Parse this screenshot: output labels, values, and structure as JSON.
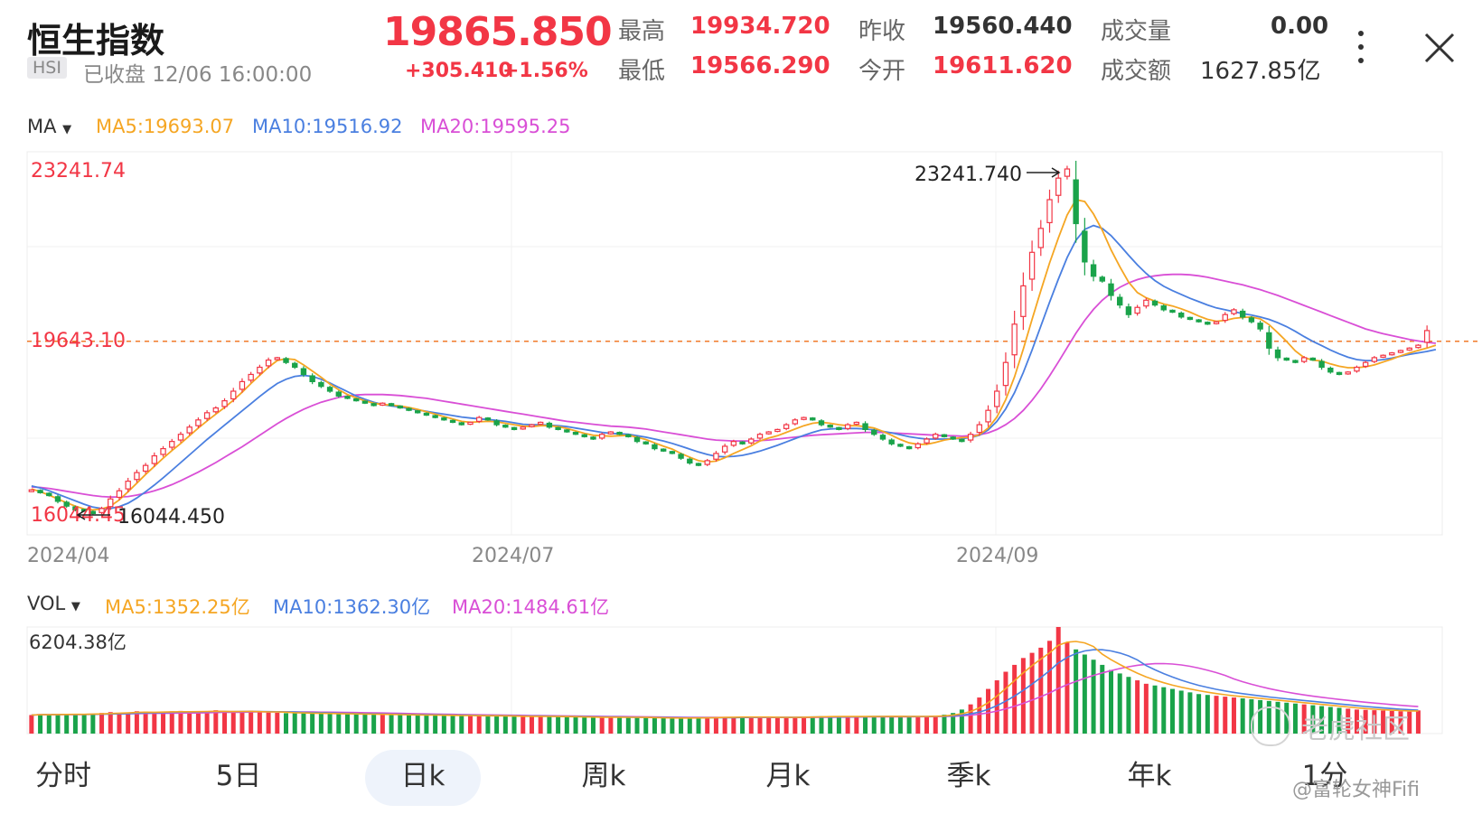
{
  "header": {
    "title": "恒生指数",
    "ticker": "HSI",
    "status": "已收盘 12/06 16:00:00",
    "price": "19865.850",
    "change": "+305.410",
    "change_pct": "+1.56%",
    "stats": {
      "high_label": "最高",
      "high": "19934.720",
      "low_label": "最低",
      "low": "19566.290",
      "prev_close_label": "昨收",
      "prev_close": "19560.440",
      "open_label": "今开",
      "open": "19611.620",
      "volume_label": "成交量",
      "volume": "0.00",
      "turnover_label": "成交额",
      "turnover": "1627.85亿"
    }
  },
  "ma_legend": {
    "label": "MA",
    "ma5": "MA5:19693.07",
    "ma10": "MA10:19516.92",
    "ma20": "MA20:19595.25"
  },
  "vol_legend": {
    "label": "VOL",
    "ma5": "MA5:1352.25亿",
    "ma10": "MA10:1362.30亿",
    "ma20": "MA20:1484.61亿"
  },
  "chart_data": [
    {
      "type": "candlestick",
      "title": "",
      "x_ticks": [
        "2024/04",
        "2024/07",
        "2024/09"
      ],
      "ylim": [
        15600,
        23600
      ],
      "max_label": "23241.74",
      "min_label": "16044.45",
      "high_marker": "23241.740",
      "low_marker": "16044.450",
      "current_line_label": "19643.10",
      "current_line_value": 19643.1,
      "close_series": [
        16540,
        16480,
        16420,
        16300,
        16200,
        16120,
        16100,
        16044,
        16150,
        16350,
        16520,
        16720,
        16900,
        17050,
        17250,
        17400,
        17550,
        17700,
        17850,
        18000,
        18150,
        18250,
        18400,
        18600,
        18800,
        18950,
        19100,
        19250,
        19300,
        19200,
        19100,
        18950,
        18800,
        18700,
        18600,
        18500,
        18450,
        18400,
        18350,
        18300,
        18350,
        18300,
        18250,
        18200,
        18150,
        18100,
        18050,
        18000,
        17950,
        17900,
        17950,
        18050,
        18000,
        17900,
        17850,
        17800,
        17850,
        17900,
        17950,
        17850,
        17800,
        17750,
        17700,
        17650,
        17600,
        17700,
        17750,
        17700,
        17650,
        17550,
        17500,
        17400,
        17350,
        17300,
        17200,
        17100,
        17050,
        17150,
        17300,
        17450,
        17550,
        17500,
        17600,
        17700,
        17750,
        17800,
        17900,
        18000,
        18050,
        18000,
        17900,
        17850,
        17800,
        17900,
        17950,
        17800,
        17700,
        17600,
        17500,
        17450,
        17400,
        17500,
        17600,
        17700,
        17650,
        17600,
        17550,
        17700,
        17900,
        18200,
        18600,
        19200,
        20000,
        20800,
        21500,
        22000,
        22600,
        23050,
        23241,
        22100,
        21300,
        21000,
        20900,
        20600,
        20400,
        20200,
        20350,
        20500,
        20400,
        20300,
        20250,
        20150,
        20100,
        20050,
        20000,
        20050,
        20200,
        20300,
        20150,
        20050,
        19900,
        19500,
        19300,
        19250,
        19200,
        19300,
        19250,
        19100,
        19000,
        18950,
        19000,
        19100,
        19200,
        19300,
        19350,
        19400,
        19450,
        19500,
        19560,
        19866
      ],
      "ma5_series": [
        16560,
        16500,
        16430,
        16350,
        16270,
        16200,
        16140,
        16120,
        16140,
        16200,
        16330,
        16500,
        16680,
        16860,
        17030,
        17200,
        17360,
        17510,
        17670,
        17830,
        17980,
        18120,
        18260,
        18410,
        18580,
        18760,
        18930,
        19100,
        19240,
        19280,
        19260,
        19150,
        19020,
        18890,
        18750,
        18630,
        18530,
        18460,
        18400,
        18350,
        18320,
        18310,
        18290,
        18260,
        18220,
        18170,
        18120,
        18070,
        18020,
        17970,
        17950,
        17960,
        17970,
        17960,
        17930,
        17900,
        17870,
        17860,
        17880,
        17880,
        17860,
        17820,
        17770,
        17720,
        17680,
        17670,
        17660,
        17670,
        17680,
        17640,
        17590,
        17520,
        17450,
        17390,
        17300,
        17220,
        17150,
        17120,
        17140,
        17210,
        17300,
        17380,
        17460,
        17560,
        17620,
        17670,
        17740,
        17810,
        17880,
        17930,
        17950,
        17930,
        17900,
        17880,
        17880,
        17860,
        17830,
        17760,
        17680,
        17590,
        17520,
        17490,
        17490,
        17530,
        17580,
        17610,
        17630,
        17640,
        17690,
        17830,
        18060,
        18420,
        18900,
        19480,
        20100,
        20700,
        21280,
        21800,
        22280,
        22600,
        22560,
        22300,
        21960,
        21550,
        21200,
        20880,
        20660,
        20550,
        20480,
        20420,
        20380,
        20320,
        20250,
        20170,
        20100,
        20060,
        20080,
        20120,
        20140,
        20150,
        20110,
        19990,
        19820,
        19640,
        19440,
        19300,
        19250,
        19230,
        19170,
        19120,
        19090,
        19090,
        19110,
        19150,
        19210,
        19270,
        19340,
        19400,
        19450,
        19500,
        19560
      ],
      "ma10_series": [
        16620,
        16580,
        16520,
        16450,
        16380,
        16310,
        16240,
        16180,
        16150,
        16150,
        16190,
        16260,
        16370,
        16500,
        16640,
        16790,
        16950,
        17110,
        17270,
        17430,
        17590,
        17740,
        17890,
        18040,
        18190,
        18340,
        18490,
        18630,
        18760,
        18850,
        18910,
        18930,
        18910,
        18850,
        18770,
        18680,
        18590,
        18500,
        18430,
        18370,
        18320,
        18290,
        18270,
        18240,
        18210,
        18180,
        18150,
        18120,
        18090,
        18060,
        18040,
        18020,
        18010,
        17990,
        17970,
        17940,
        17910,
        17900,
        17900,
        17890,
        17880,
        17860,
        17830,
        17800,
        17770,
        17740,
        17720,
        17710,
        17700,
        17670,
        17640,
        17600,
        17560,
        17510,
        17450,
        17390,
        17330,
        17280,
        17240,
        17230,
        17240,
        17260,
        17300,
        17350,
        17410,
        17470,
        17540,
        17610,
        17680,
        17740,
        17790,
        17810,
        17820,
        17820,
        17820,
        17810,
        17790,
        17760,
        17730,
        17690,
        17650,
        17620,
        17600,
        17600,
        17600,
        17610,
        17610,
        17630,
        17680,
        17790,
        17970,
        18230,
        18570,
        18990,
        19460,
        19960,
        20460,
        20940,
        21390,
        21750,
        21980,
        22060,
        22000,
        21850,
        21650,
        21440,
        21240,
        21060,
        20910,
        20790,
        20700,
        20620,
        20540,
        20470,
        20400,
        20340,
        20300,
        20260,
        20220,
        20190,
        20150,
        20100,
        20030,
        19950,
        19850,
        19740,
        19640,
        19550,
        19460,
        19380,
        19310,
        19260,
        19240,
        19240,
        19260,
        19290,
        19330,
        19370,
        19400,
        19430,
        19470
      ],
      "ma20_series": [
        16600,
        16590,
        16570,
        16540,
        16510,
        16480,
        16450,
        16420,
        16400,
        16390,
        16390,
        16400,
        16430,
        16470,
        16520,
        16580,
        16650,
        16730,
        16820,
        16910,
        17010,
        17110,
        17220,
        17330,
        17440,
        17560,
        17680,
        17800,
        17920,
        18030,
        18130,
        18220,
        18300,
        18370,
        18420,
        18470,
        18500,
        18520,
        18530,
        18530,
        18530,
        18520,
        18510,
        18490,
        18470,
        18450,
        18420,
        18390,
        18360,
        18330,
        18300,
        18270,
        18240,
        18210,
        18180,
        18150,
        18120,
        18090,
        18060,
        18030,
        18000,
        17970,
        17950,
        17930,
        17910,
        17890,
        17870,
        17860,
        17850,
        17830,
        17810,
        17780,
        17750,
        17720,
        17690,
        17660,
        17630,
        17600,
        17580,
        17570,
        17560,
        17560,
        17560,
        17570,
        17580,
        17600,
        17620,
        17640,
        17660,
        17680,
        17690,
        17700,
        17710,
        17720,
        17730,
        17740,
        17740,
        17740,
        17730,
        17720,
        17710,
        17700,
        17690,
        17680,
        17670,
        17670,
        17660,
        17670,
        17690,
        17730,
        17800,
        17900,
        18030,
        18200,
        18410,
        18650,
        18920,
        19210,
        19510,
        19810,
        20080,
        20310,
        20500,
        20650,
        20770,
        20860,
        20930,
        20980,
        21010,
        21030,
        21040,
        21040,
        21030,
        21010,
        20980,
        20940,
        20900,
        20860,
        20820,
        20770,
        20720,
        20660,
        20600,
        20530,
        20460,
        20390,
        20320,
        20250,
        20180,
        20110,
        20040,
        19970,
        19900,
        19850,
        19800,
        19760,
        19720,
        19680,
        19650,
        19620,
        19600
      ]
    },
    {
      "type": "bar",
      "title": "",
      "max_label": "6204.38亿",
      "unit": "亿",
      "ylim": [
        0,
        6204.38
      ],
      "values": [
        1080,
        1120,
        1100,
        1130,
        1150,
        1090,
        1140,
        1160,
        1200,
        1250,
        1180,
        1230,
        1300,
        1280,
        1220,
        1240,
        1300,
        1320,
        1270,
        1250,
        1290,
        1360,
        1300,
        1210,
        1280,
        1330,
        1260,
        1230,
        1210,
        1190,
        1180,
        1200,
        1170,
        1160,
        1150,
        1140,
        1130,
        1150,
        1120,
        1100,
        1110,
        1100,
        1090,
        1080,
        1070,
        1060,
        1080,
        1050,
        1040,
        1030,
        1050,
        1040,
        1030,
        1020,
        1010,
        1000,
        990,
        1000,
        1010,
        990,
        980,
        970,
        960,
        950,
        940,
        950,
        960,
        950,
        940,
        930,
        920,
        910,
        900,
        890,
        900,
        920,
        930,
        940,
        950,
        960,
        970,
        980,
        960,
        950,
        940,
        930,
        940,
        960,
        980,
        1000,
        1010,
        1000,
        990,
        980,
        990,
        1000,
        1010,
        1020,
        1000,
        990,
        980,
        1000,
        1020,
        1050,
        1100,
        1200,
        1400,
        1700,
        2100,
        2600,
        3100,
        3600,
        4000,
        4400,
        4700,
        5000,
        5400,
        6204,
        5300,
        4900,
        4600,
        4300,
        4000,
        3700,
        3500,
        3300,
        3100,
        2900,
        2800,
        2700,
        2600,
        2500,
        2400,
        2300,
        2250,
        2200,
        2150,
        2100,
        2050,
        2000,
        1950,
        1900,
        1850,
        1800,
        1750,
        1700,
        1650,
        1600,
        1550,
        1500,
        1450,
        1400,
        1380,
        1360,
        1340,
        1320,
        1300,
        1280,
        1350
      ],
      "colors": [
        "#f23645",
        "#1aa34a"
      ]
    }
  ],
  "tabs": [
    "分时",
    "5日",
    "日k",
    "周k",
    "月k",
    "季k",
    "年k",
    "1分"
  ],
  "active_tab": "日k",
  "watermark": "老虎社区",
  "credit": "@富轮女神Fifi",
  "colors": {
    "up": "#f23645",
    "down": "#1aa34a",
    "ma5": "#f5a623",
    "ma10": "#4a7fe0",
    "ma20": "#d94fd6",
    "price_line": "#f07a2a"
  }
}
